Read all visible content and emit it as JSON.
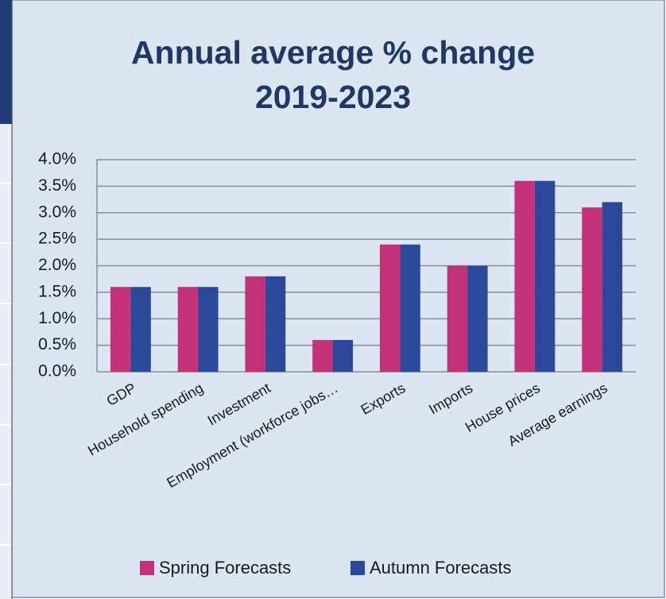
{
  "chart_data": {
    "type": "bar",
    "title": "Annual average % change 2019-2023",
    "categories": [
      "GDP",
      "Household spending",
      "Investment",
      "Employment (workforce jobs…",
      "Exports",
      "Imports",
      "House prices",
      "Average earnings"
    ],
    "series": [
      {
        "name": "Spring Forecasts",
        "color": "#c4317b",
        "values": [
          1.6,
          1.6,
          1.8,
          0.6,
          2.4,
          2.0,
          3.6,
          3.1
        ]
      },
      {
        "name": "Autumn Forecasts",
        "color": "#2c4899",
        "values": [
          1.6,
          1.6,
          1.8,
          0.6,
          2.4,
          2.0,
          3.6,
          3.2
        ]
      }
    ],
    "ylim": [
      0,
      4
    ],
    "yticks": [
      {
        "value": 0,
        "label": "0.0%"
      },
      {
        "value": 0.5,
        "label": "0.5%"
      },
      {
        "value": 1,
        "label": "1.0%"
      },
      {
        "value": 1.5,
        "label": "1.5%"
      },
      {
        "value": 2,
        "label": "2.0%"
      },
      {
        "value": 2.5,
        "label": "2.5%"
      },
      {
        "value": 3,
        "label": "3.0%"
      },
      {
        "value": 3.5,
        "label": "3.5%"
      },
      {
        "value": 4,
        "label": "4.0%"
      }
    ],
    "grid": true,
    "legend": "bottom"
  }
}
